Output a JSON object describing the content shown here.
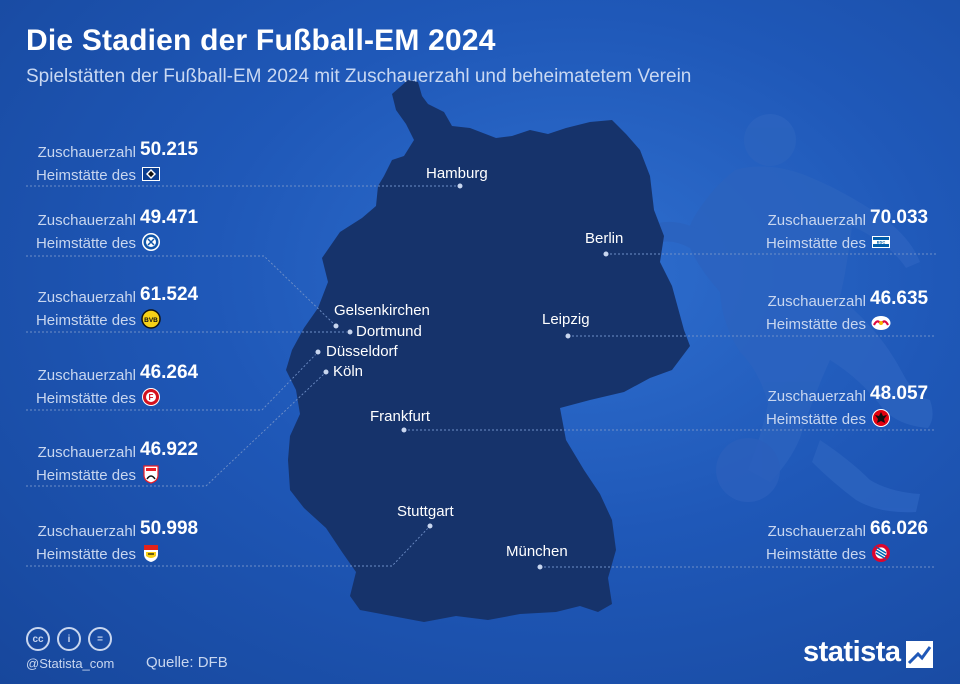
{
  "header": {
    "title": "Die Stadien der Fußball-EM 2024",
    "subtitle": "Spielstätten der Fußball-EM 2024 mit Zuschauerzahl und beheimatetem Verein"
  },
  "labels": {
    "capacity": "Zuschauerzahl",
    "home": "Heimstätte des"
  },
  "cities": {
    "hamburg": "Hamburg",
    "berlin": "Berlin",
    "gelsenkirchen": "Gelsenkirchen",
    "dortmund": "Dortmund",
    "duesseldorf": "Düsseldorf",
    "koeln": "Köln",
    "leipzig": "Leipzig",
    "frankfurt": "Frankfurt",
    "stuttgart": "Stuttgart",
    "muenchen": "München"
  },
  "stadiums": {
    "hamburg": {
      "capacity": "50.215",
      "crest_icon": "hsv-crest-icon",
      "color": "#0a3d8f"
    },
    "gelsenkirchen": {
      "capacity": "49.471",
      "crest_icon": "schalke-crest-icon",
      "color": "#0f55a8"
    },
    "dortmund": {
      "capacity": "61.524",
      "crest_icon": "bvb-crest-icon",
      "color": "#f7d117"
    },
    "duesseldorf": {
      "capacity": "46.264",
      "crest_icon": "fortuna-crest-icon",
      "color": "#d4111e"
    },
    "koeln": {
      "capacity": "46.922",
      "crest_icon": "fc-koeln-crest-icon",
      "color": "#ed1c24"
    },
    "stuttgart": {
      "capacity": "50.998",
      "crest_icon": "vfb-crest-icon",
      "color": "#e32219"
    },
    "berlin": {
      "capacity": "70.033",
      "crest_icon": "hertha-crest-icon",
      "color": "#005ca9"
    },
    "leipzig": {
      "capacity": "46.635",
      "crest_icon": "rb-leipzig-crest-icon",
      "color": "#dd0741"
    },
    "frankfurt": {
      "capacity": "48.057",
      "crest_icon": "eintracht-crest-icon",
      "color": "#e1000f"
    },
    "muenchen": {
      "capacity": "66.026",
      "crest_icon": "fc-bayern-crest-icon",
      "color": "#dc052d"
    }
  },
  "footer": {
    "license_icons": [
      "cc-icon",
      "by-icon",
      "nd-icon"
    ],
    "license_glyphs": [
      "cc",
      "i",
      "="
    ],
    "handle": "@Statista_com",
    "source": "Quelle: DFB",
    "brand": "statista"
  },
  "colors": {
    "background": "#1f58b8",
    "map_fill": "#16336b",
    "silhouette": "#2b63bf",
    "leader_line": "#6f8fc7"
  }
}
